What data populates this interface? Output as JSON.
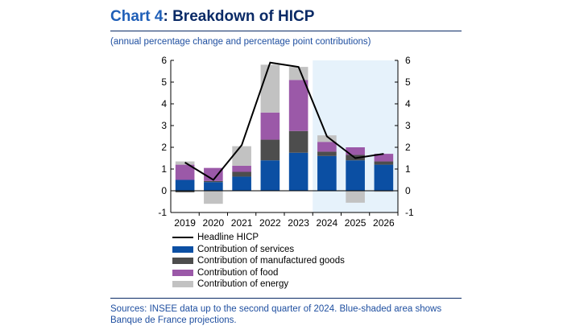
{
  "header": {
    "title_lead": "Chart 4",
    "title_rest": ": Breakdown of HICP",
    "subtitle": "(annual percentage change and percentage point contributions)"
  },
  "chart_data": {
    "type": "bar",
    "stacked": true,
    "categories": [
      "2019",
      "2020",
      "2021",
      "2022",
      "2023",
      "2024",
      "2025",
      "2026"
    ],
    "ylim": [
      -1,
      6
    ],
    "yticks": [
      "-1",
      "0",
      "1",
      "2",
      "3",
      "4",
      "5",
      "6"
    ],
    "dual_y_axis": true,
    "projection_shaded_from": "2024",
    "projection_color": "#e6f2fb",
    "series": [
      {
        "name": "Contribution of services",
        "kind": "bar",
        "color": "#0b4fa3",
        "values": [
          0.5,
          0.4,
          0.65,
          1.4,
          1.75,
          1.6,
          1.4,
          1.2
        ]
      },
      {
        "name": "Contribution of manufactured goods",
        "kind": "bar",
        "color": "#4d4d4d",
        "values": [
          -0.07,
          0.05,
          0.22,
          0.95,
          1.0,
          0.2,
          0.25,
          0.15
        ]
      },
      {
        "name": "Contribution of food",
        "kind": "bar",
        "color": "#9b59a8",
        "values": [
          0.7,
          0.6,
          0.28,
          1.25,
          2.35,
          0.45,
          0.35,
          0.35
        ]
      },
      {
        "name": "Contribution of energy",
        "kind": "bar",
        "color": "#c2c2c2",
        "values": [
          0.15,
          -0.6,
          0.9,
          2.2,
          0.6,
          0.3,
          -0.55,
          -0.05
        ]
      },
      {
        "name": "Headline HICP",
        "kind": "line",
        "color": "#000000",
        "values": [
          1.3,
          0.5,
          2.1,
          5.9,
          5.7,
          2.5,
          1.5,
          1.7
        ]
      }
    ]
  },
  "legend": {
    "items": [
      {
        "label": "Headline HICP",
        "type": "line",
        "color": "#000000"
      },
      {
        "label": "Contribution of services",
        "type": "box",
        "color": "#0b4fa3"
      },
      {
        "label": "Contribution of manufactured goods",
        "type": "box",
        "color": "#4d4d4d"
      },
      {
        "label": "Contribution of food",
        "type": "box",
        "color": "#9b59a8"
      },
      {
        "label": "Contribution of energy",
        "type": "box",
        "color": "#c2c2c2"
      }
    ]
  },
  "footer": {
    "sources": "Sources: INSEE data up to the second quarter of 2024. Blue-shaded area shows Banque de France projections."
  }
}
